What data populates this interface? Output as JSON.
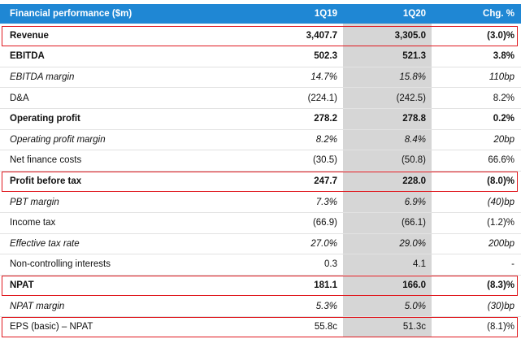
{
  "header": {
    "label": "Financial performance ($m)",
    "col1": "1Q19",
    "col2": "1Q20",
    "col3": "Chg. %"
  },
  "rows": [
    {
      "label": "Revenue",
      "v1": "3,407.7",
      "v2": "3,305.0",
      "chg": "(3.0)%",
      "style": "bold",
      "highlighted": true
    },
    {
      "label": "EBITDA",
      "v1": "502.3",
      "v2": "521.3",
      "chg": "3.8%",
      "style": "bold",
      "highlighted": false
    },
    {
      "label": "EBITDA margin",
      "v1": "14.7%",
      "v2": "15.8%",
      "chg": "110bp",
      "style": "italic",
      "highlighted": false
    },
    {
      "label": "D&A",
      "v1": "(224.1)",
      "v2": "(242.5)",
      "chg": "8.2%",
      "style": "normal",
      "highlighted": false
    },
    {
      "label": "Operating profit",
      "v1": "278.2",
      "v2": "278.8",
      "chg": "0.2%",
      "style": "bold",
      "highlighted": false
    },
    {
      "label": "Operating profit margin",
      "v1": "8.2%",
      "v2": "8.4%",
      "chg": "20bp",
      "style": "italic",
      "highlighted": false
    },
    {
      "label": "Net finance costs",
      "v1": "(30.5)",
      "v2": "(50.8)",
      "chg": "66.6%",
      "style": "normal",
      "highlighted": false
    },
    {
      "label": "Profit before tax",
      "v1": "247.7",
      "v2": "228.0",
      "chg": "(8.0)%",
      "style": "bold",
      "highlighted": true
    },
    {
      "label": "PBT margin",
      "v1": "7.3%",
      "v2": "6.9%",
      "chg": "(40)bp",
      "style": "italic",
      "highlighted": false
    },
    {
      "label": "Income tax",
      "v1": "(66.9)",
      "v2": "(66.1)",
      "chg": "(1.2)%",
      "style": "normal",
      "highlighted": false
    },
    {
      "label": "Effective tax rate",
      "v1": "27.0%",
      "v2": "29.0%",
      "chg": "200bp",
      "style": "italic",
      "highlighted": false
    },
    {
      "label": "Non-controlling interests",
      "v1": "0.3",
      "v2": "4.1",
      "chg": "-",
      "style": "normal",
      "highlighted": false
    },
    {
      "label": "NPAT",
      "v1": "181.1",
      "v2": "166.0",
      "chg": "(8.3)%",
      "style": "bold",
      "highlighted": true
    },
    {
      "label": "NPAT margin",
      "v1": "5.3%",
      "v2": "5.0%",
      "chg": "(30)bp",
      "style": "italic",
      "highlighted": false
    },
    {
      "label": "EPS (basic) – NPAT",
      "v1": "55.8c",
      "v2": "51.3c",
      "chg": "(8.1)%",
      "style": "normal",
      "highlighted": true
    }
  ],
  "colors": {
    "header_bg": "#1f87d4",
    "header_text": "#ffffff",
    "current_column_shade": "#d6d6d6",
    "highlight_border": "#e0191f"
  }
}
